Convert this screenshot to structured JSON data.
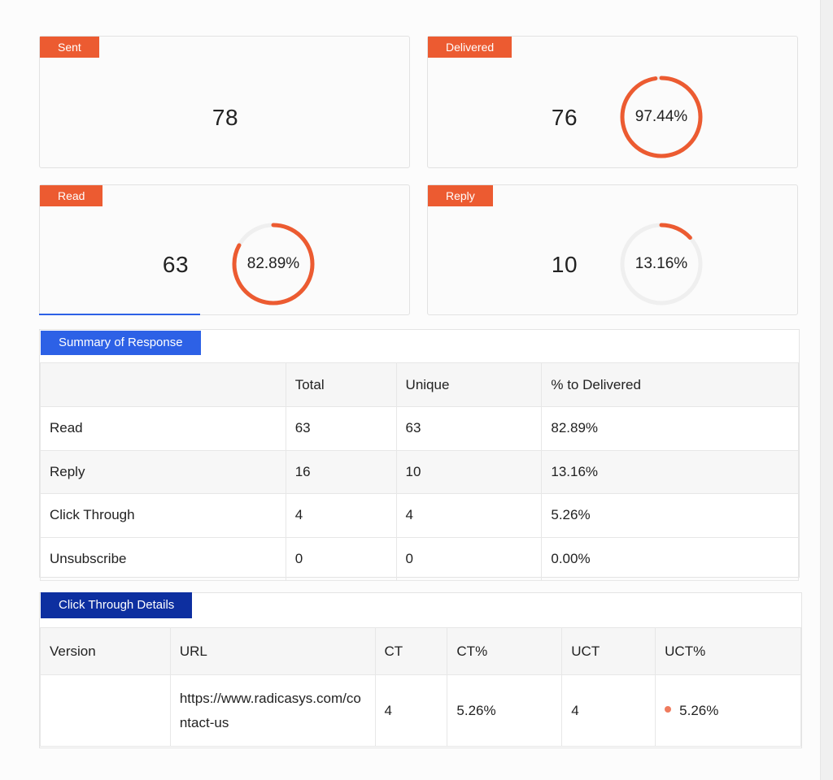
{
  "colors": {
    "accent": "#ec5b31",
    "ring_track": "#efefef",
    "summary_tag": "#2d61e6",
    "click_tag": "#0d2fa0"
  },
  "cards": {
    "sent": {
      "label": "Sent",
      "value": "78"
    },
    "delivered": {
      "label": "Delivered",
      "value": "76",
      "percent": "97.44%",
      "fraction": 0.9744
    },
    "read": {
      "label": "Read",
      "value": "63",
      "percent": "82.89%",
      "fraction": 0.8289
    },
    "reply": {
      "label": "Reply",
      "value": "10",
      "percent": "13.16%",
      "fraction": 0.1316
    }
  },
  "summary": {
    "title": "Summary of Response",
    "headers": [
      "",
      "Total",
      "Unique",
      "% to Delivered"
    ],
    "rows": [
      [
        "Read",
        "63",
        "63",
        "82.89%"
      ],
      [
        "Reply",
        "16",
        "10",
        "13.16%"
      ],
      [
        "Click Through",
        "4",
        "4",
        "5.26%"
      ],
      [
        "Unsubscribe",
        "0",
        "0",
        "0.00%"
      ]
    ]
  },
  "click_through": {
    "title": "Click Through Details",
    "headers": [
      "Version",
      "URL",
      "CT",
      "CT%",
      "UCT",
      "UCT%"
    ],
    "rows": [
      [
        "",
        "https://www.radicasys.com/contact-us",
        "4",
        "5.26%",
        "4",
        "5.26%"
      ]
    ]
  }
}
